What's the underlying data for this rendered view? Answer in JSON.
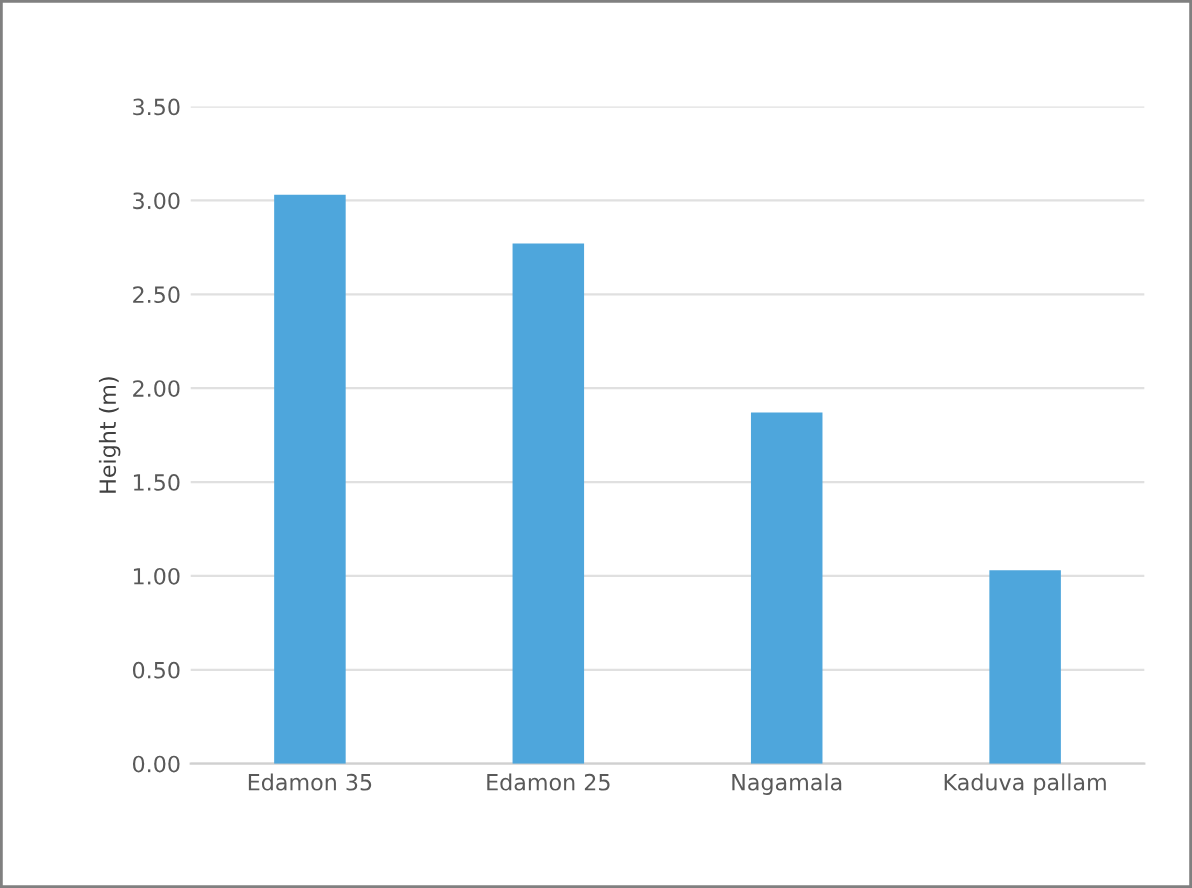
{
  "chart_data": {
    "type": "bar",
    "ylabel": "Height (m)",
    "categories": [
      "Edamon 35",
      "Edamon 25",
      "Nagamala",
      "Kaduva pallam"
    ],
    "values": [
      3.03,
      2.77,
      1.87,
      1.03
    ],
    "color": "#4ea6dc",
    "ylim": [
      0,
      3.5
    ],
    "yticks": [
      {
        "value": 0,
        "label": "0.00"
      },
      {
        "value": 0.5,
        "label": "0.50"
      },
      {
        "value": 1,
        "label": "1.00"
      },
      {
        "value": 1.5,
        "label": "1.50"
      },
      {
        "value": 2,
        "label": "2.00"
      },
      {
        "value": 2.5,
        "label": "2.50"
      },
      {
        "value": 3,
        "label": "3.00"
      },
      {
        "value": 3.5,
        "label": "3.50"
      }
    ],
    "grid": "y"
  }
}
